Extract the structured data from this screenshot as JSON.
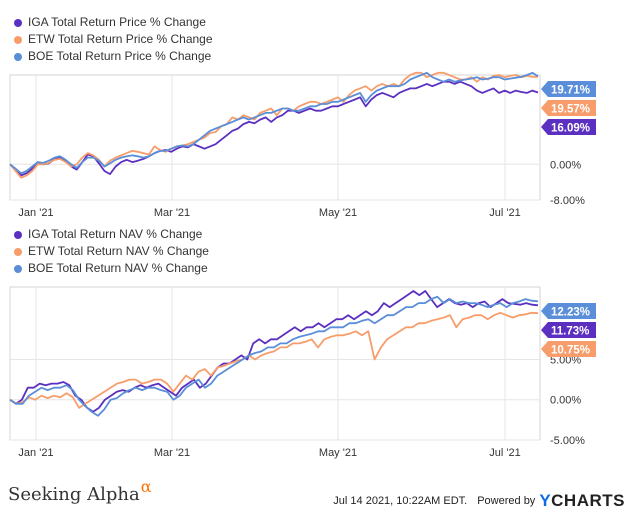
{
  "chart_data": [
    {
      "type": "line",
      "legend_position": "top-left",
      "x_ticks": [
        "Jan '21",
        "Mar '21",
        "May '21",
        "Jul '21"
      ],
      "y_ticks": [
        0,
        -8
      ],
      "y_tick_labels": [
        "0.00%",
        "-8.00%"
      ],
      "ylim": [
        -8,
        20
      ],
      "end_labels": [
        "19.71%",
        "19.57%",
        "16.09%"
      ],
      "series": [
        {
          "name": "IGA Total Return Price % Change",
          "color": "#5b2fc0",
          "values": [
            0,
            -1,
            -2.5,
            -2,
            -1,
            0.5,
            0,
            0.2,
            1.2,
            1.5,
            0.8,
            -0.5,
            -1.2,
            0.5,
            2.2,
            1.8,
            0.2,
            -1.5,
            -2.2,
            -0.5,
            0.5,
            1,
            0.5,
            0.8,
            1.2,
            1.8,
            2.5,
            3,
            3.2,
            2.8,
            3.5,
            4,
            3.8,
            4.5,
            4,
            3.5,
            4,
            4.5,
            5.5,
            6.5,
            7.5,
            8,
            9,
            9.5,
            9.2,
            10,
            10.5,
            9.5,
            10.5,
            11,
            12,
            12,
            11.5,
            12,
            12.5,
            12,
            12,
            12.5,
            13,
            13,
            13.5,
            14,
            14.5,
            15,
            13,
            14.5,
            15.5,
            16,
            15.5,
            15,
            16,
            16.5,
            17,
            17,
            17.5,
            18,
            17.5,
            18,
            18.5,
            18.5,
            18,
            18.5,
            18,
            17.5,
            16.5,
            16,
            16.5,
            17,
            16,
            16.5,
            16,
            16.5,
            16.2,
            16,
            16.5,
            16.09
          ]
        },
        {
          "name": "ETW Total Return Price % Change",
          "color": "#f79d6b",
          "values": [
            0,
            -1.5,
            -3,
            -2.5,
            -1.5,
            0,
            0,
            0.3,
            1,
            1.2,
            0.5,
            -0.5,
            0,
            1.5,
            2.5,
            2,
            1,
            -0.5,
            0.8,
            1.5,
            2,
            2.5,
            3,
            2.8,
            2.5,
            2.2,
            4,
            3.2,
            2.8,
            3.5,
            4,
            4.2,
            4.5,
            5,
            5.5,
            6,
            7,
            7.2,
            8.5,
            9,
            10.5,
            10,
            11,
            10.5,
            10,
            11.5,
            12,
            12.5,
            11,
            12.5,
            12.5,
            12,
            13,
            13.5,
            14,
            14,
            13.5,
            14,
            14.5,
            15,
            14,
            15.5,
            16.5,
            17,
            17.5,
            16.5,
            17.5,
            18,
            17.5,
            18,
            17.5,
            19,
            20,
            20.5,
            20.5,
            19.5,
            20,
            20.5,
            20.5,
            20,
            19.5,
            19,
            19,
            19.5,
            18.5,
            19.5,
            19,
            19.8,
            20,
            19.5,
            19.8,
            20,
            19.5,
            19.8,
            19.6,
            19.57
          ]
        },
        {
          "name": "BOE Total Return Price % Change",
          "color": "#5a8ed8",
          "values": [
            0,
            -1,
            -2,
            -1.5,
            -0.5,
            0.5,
            0.3,
            0.8,
            1.5,
            1.8,
            1,
            0,
            -0.8,
            0.5,
            1.5,
            1.5,
            0.8,
            -0.5,
            0.2,
            1,
            1.5,
            1.8,
            2,
            1.8,
            1.5,
            1.8,
            2.5,
            3,
            3,
            3.5,
            4,
            4.2,
            4,
            4.5,
            5.5,
            6.5,
            7.5,
            8,
            8.5,
            9,
            9.5,
            10,
            10.5,
            10,
            10.5,
            11,
            11.5,
            11.5,
            12,
            12.5,
            12.5,
            12,
            12,
            12.5,
            13,
            13,
            13.5,
            13.5,
            14,
            14,
            14.5,
            15,
            15.5,
            16,
            14,
            15.5,
            16.5,
            17,
            17.5,
            17.5,
            17.5,
            18,
            19,
            19.5,
            20,
            20.5,
            19.5,
            19,
            18.5,
            19,
            18.5,
            18.8,
            19,
            19.2,
            19.5,
            19,
            19.2,
            19.5,
            19.5,
            19,
            19.2,
            19.4,
            19.6,
            20,
            20.5,
            19.71
          ]
        }
      ]
    },
    {
      "type": "line",
      "legend_position": "top-left",
      "x_ticks": [
        "Jan '21",
        "Mar '21",
        "May '21",
        "Jul '21"
      ],
      "y_ticks": [
        5,
        0,
        -5
      ],
      "y_tick_labels": [
        "5.00%",
        "0.00%",
        "-5.00%"
      ],
      "ylim": [
        -5,
        14
      ],
      "end_labels": [
        "12.23%",
        "11.73%",
        "10.75%"
      ],
      "series": [
        {
          "name": "IGA Total Return NAV % Change",
          "color": "#5b2fc0",
          "values": [
            0,
            -0.5,
            0,
            1.5,
            1.5,
            2,
            1.8,
            2,
            2,
            2.2,
            1.8,
            0.5,
            0,
            -1,
            -1.5,
            -1,
            0,
            0.5,
            1,
            1.2,
            1,
            1.5,
            1.8,
            1.5,
            1.8,
            2,
            1.5,
            1,
            0.5,
            1.5,
            2,
            2.5,
            1.5,
            2,
            3,
            4,
            4.5,
            4.5,
            5,
            5.5,
            5,
            7,
            7.5,
            7,
            7.5,
            7.5,
            8,
            8.5,
            9,
            8.5,
            9,
            9,
            9.5,
            9,
            9.5,
            10,
            10,
            10.5,
            10,
            10.5,
            11,
            10.5,
            11,
            12,
            11.5,
            12,
            12.5,
            13,
            13.5,
            13,
            13.5,
            12.5,
            11.5,
            12,
            12.5,
            12,
            11.8,
            12,
            11.5,
            12,
            12.2,
            11.5,
            12,
            12.5,
            12,
            11.9,
            11.8,
            12,
            11.8,
            11.73
          ]
        },
        {
          "name": "ETW Total Return NAV % Change",
          "color": "#f79d6b",
          "values": [
            0,
            -0.5,
            -0.3,
            0.3,
            0,
            0.5,
            0.2,
            0.5,
            0.3,
            0.8,
            0.3,
            -1,
            -0.5,
            0,
            0.5,
            1,
            1.5,
            2,
            2.2,
            2.5,
            2.5,
            2,
            2.2,
            2.5,
            2.5,
            2,
            1,
            2,
            3,
            2.5,
            3.5,
            3.8,
            3,
            4,
            4.2,
            4.5,
            4.8,
            5,
            5.5,
            5,
            5.5,
            5.8,
            6,
            6.5,
            6.5,
            7,
            7,
            7.2,
            7.5,
            6.5,
            7.5,
            7.8,
            8,
            8,
            8.2,
            8.5,
            8,
            8.5,
            5,
            6.5,
            7.5,
            8,
            8.5,
            9,
            9,
            9.5,
            9.5,
            9.8,
            10,
            10.2,
            10.5,
            9,
            10,
            10.2,
            10.5,
            10.5,
            10,
            10.5,
            10.8,
            10.5,
            10.2,
            10.5,
            10.6,
            10.8,
            10.75
          ]
        },
        {
          "name": "BOE Total Return NAV % Change",
          "color": "#5a8ed8",
          "values": [
            0,
            -0.5,
            -0.5,
            0.5,
            1,
            1.5,
            1.2,
            1.5,
            1.5,
            1.8,
            1.2,
            0,
            -0.8,
            -1.5,
            -2,
            -1.2,
            0,
            0.2,
            0.8,
            1.2,
            1.5,
            1.2,
            1.5,
            1.5,
            1.2,
            1,
            0,
            0.5,
            1.5,
            2,
            2.5,
            1.5,
            2,
            3,
            3.5,
            4,
            4.5,
            5,
            5.5,
            5.8,
            6,
            6.5,
            6.5,
            7,
            7,
            7.5,
            7.8,
            8,
            8.2,
            8.5,
            8.5,
            9,
            9,
            9,
            9.5,
            9.5,
            9.8,
            10,
            9.5,
            10,
            10.5,
            10.5,
            11,
            11.5,
            11.5,
            12,
            12,
            12.5,
            12.8,
            12,
            12.5,
            12,
            12.2,
            12,
            12,
            11.8,
            11.5,
            11.8,
            12,
            11.5,
            12,
            12.2,
            12.5,
            12.3,
            12.23
          ]
        }
      ]
    }
  ],
  "footer": {
    "brand": "Seeking Alpha",
    "brand_symbol": "α",
    "timestamp": "Jul 14 2021, 10:22AM EDT.",
    "powered_by": "Powered by",
    "ycharts_y": "Y",
    "ycharts_rest": "CHARTS"
  }
}
